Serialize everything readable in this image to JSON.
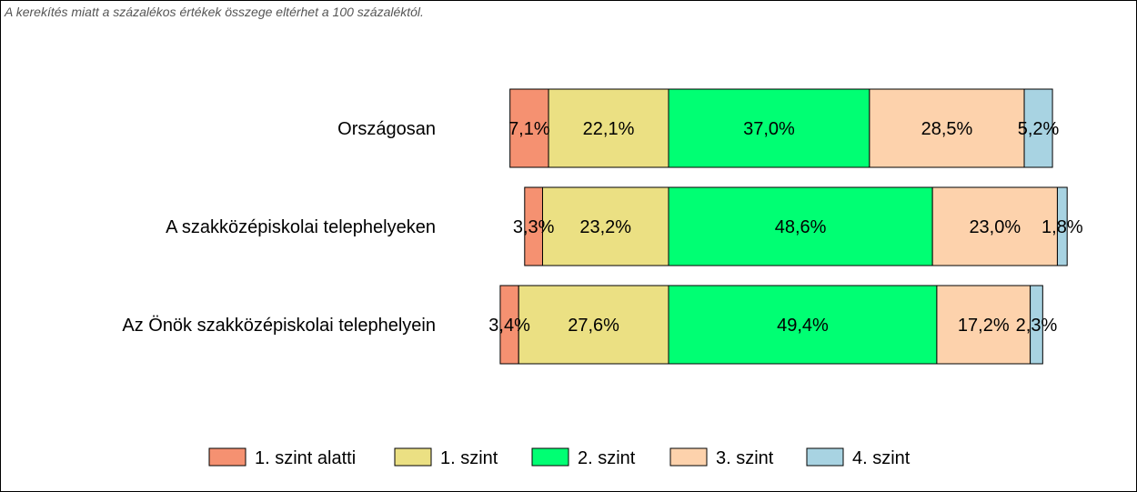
{
  "note": "A kerekítés miatt a  százalékos értékek összege eltérhet a 100 százaléktól.",
  "chart_data": {
    "type": "bar",
    "orientation": "horizontal",
    "stacked": true,
    "title": "",
    "categories": [
      "Országosan",
      "A szakközépiskolai telephelyeken",
      "Az Önök szakközépiskolai telephelyein"
    ],
    "series": [
      {
        "name": "1. szint alatti",
        "color": "#f59171",
        "values": [
          7.1,
          3.3,
          3.4
        ],
        "labels": [
          "7,1%",
          "3,3%",
          "3,4%"
        ]
      },
      {
        "name": "1. szint",
        "color": "#ebe083",
        "values": [
          22.1,
          23.2,
          27.6
        ],
        "labels": [
          "22,1%",
          "23,2%",
          "27,6%"
        ]
      },
      {
        "name": "2. szint",
        "color": "#00ff73",
        "values": [
          37.0,
          48.6,
          49.4
        ],
        "labels": [
          "37,0%",
          "48,6%",
          "49,4%"
        ]
      },
      {
        "name": "3. szint",
        "color": "#fdd2ac",
        "values": [
          28.5,
          23.0,
          17.2
        ],
        "labels": [
          "28,5%",
          "23,0%",
          "17,2%"
        ]
      },
      {
        "name": "4. szint",
        "color": "#a8d3e2",
        "values": [
          5.2,
          1.8,
          2.3
        ],
        "labels": [
          "5,2%",
          "1,8%",
          "2,3%"
        ]
      }
    ],
    "anchor": "bars aligned at the boundary between 1. szint and 2. szint",
    "legend_position": "bottom",
    "grid": false
  }
}
